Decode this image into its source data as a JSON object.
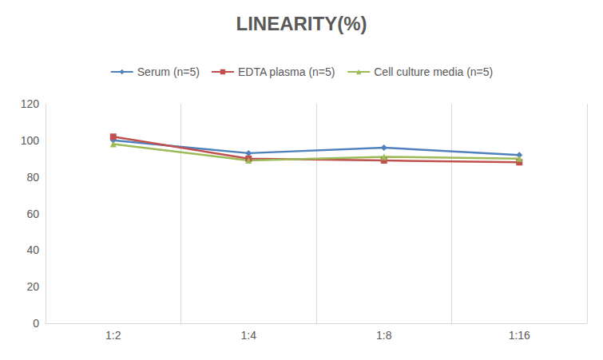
{
  "chart_data": {
    "type": "line",
    "title": "LINEARITY(%)",
    "categories": [
      "1:2",
      "1:4",
      "1:8",
      "1:16"
    ],
    "series": [
      {
        "name": "Serum (n=5)",
        "color": "#4f81bd",
        "marker": "diamond",
        "values": [
          100,
          93,
          96,
          92
        ]
      },
      {
        "name": "EDTA plasma (n=5)",
        "color": "#c0504d",
        "marker": "square",
        "values": [
          102,
          90,
          89,
          88
        ]
      },
      {
        "name": "Cell culture media (n=5)",
        "color": "#9bbb59",
        "marker": "triangle",
        "values": [
          98,
          89,
          91,
          90
        ]
      }
    ],
    "ylim": [
      0,
      120
    ],
    "yticks": [
      0,
      20,
      40,
      60,
      80,
      100,
      120
    ],
    "grid": true,
    "legend": "top"
  }
}
